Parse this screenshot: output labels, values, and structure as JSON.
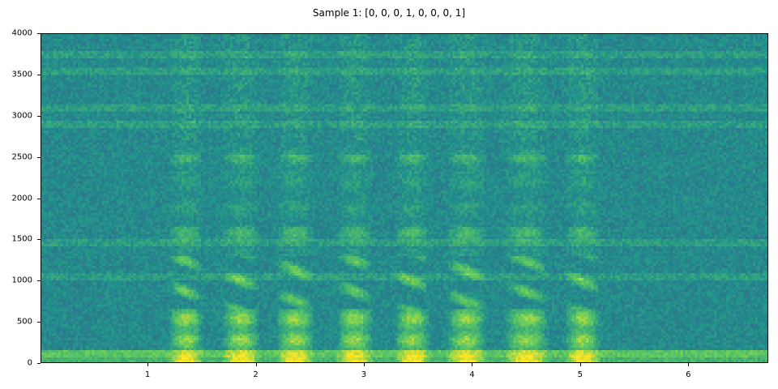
{
  "chart_data": {
    "type": "heatmap",
    "title": "Sample 1: [0, 0, 0, 1, 0, 0, 0, 1]",
    "xlabel": "",
    "ylabel": "",
    "xlim": [
      0.01,
      6.74
    ],
    "ylim": [
      0,
      4000
    ],
    "xticks": [
      "1",
      "2",
      "3",
      "4",
      "5",
      "6"
    ],
    "yticks": [
      "0",
      "500",
      "1000",
      "1500",
      "2000",
      "2500",
      "3000",
      "3500",
      "4000"
    ],
    "colormap": "viridis",
    "colors": {
      "low": "#3b528b",
      "mid": "#21918c",
      "high": "#fde725"
    },
    "voiced_segments": [
      [
        1.18,
        1.62
      ],
      [
        1.68,
        2.15
      ],
      [
        2.18,
        2.66
      ],
      [
        2.74,
        3.2
      ],
      [
        3.28,
        3.72
      ],
      [
        3.76,
        4.26
      ],
      [
        4.3,
        4.85
      ],
      [
        4.86,
        5.3
      ]
    ],
    "horizontal_bands_hz": [
      100,
      1050,
      1450,
      2900,
      3100,
      3550,
      3750
    ],
    "grid": false
  }
}
